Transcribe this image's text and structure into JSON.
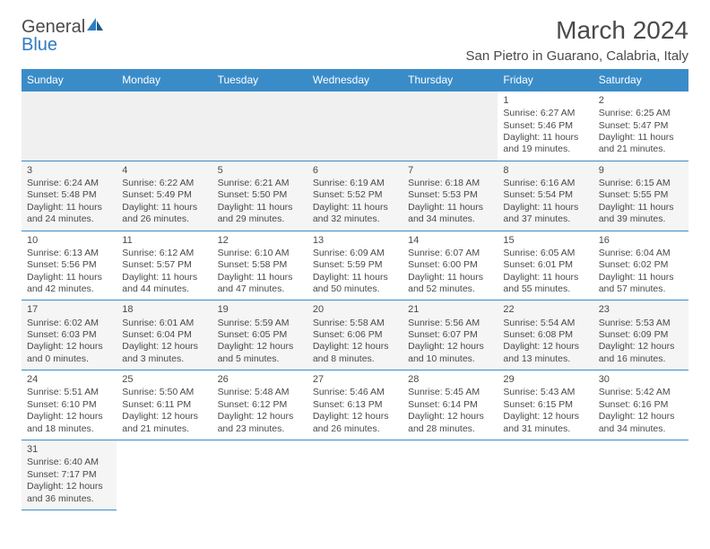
{
  "logo": {
    "text1": "General",
    "text2": "Blue"
  },
  "title": "March 2024",
  "location": "San Pietro in Guarano, Calabria, Italy",
  "weekdays": [
    "Sunday",
    "Monday",
    "Tuesday",
    "Wednesday",
    "Thursday",
    "Friday",
    "Saturday"
  ],
  "colors": {
    "header_bg": "#3a8cc8",
    "header_fg": "#ffffff",
    "border": "#3a8cc8",
    "text": "#4a4a4a",
    "alt_row": "#f5f5f5"
  },
  "weeks": [
    [
      null,
      null,
      null,
      null,
      null,
      {
        "n": "1",
        "sr": "Sunrise: 6:27 AM",
        "ss": "Sunset: 5:46 PM",
        "dl": "Daylight: 11 hours and 19 minutes."
      },
      {
        "n": "2",
        "sr": "Sunrise: 6:25 AM",
        "ss": "Sunset: 5:47 PM",
        "dl": "Daylight: 11 hours and 21 minutes."
      }
    ],
    [
      {
        "n": "3",
        "sr": "Sunrise: 6:24 AM",
        "ss": "Sunset: 5:48 PM",
        "dl": "Daylight: 11 hours and 24 minutes."
      },
      {
        "n": "4",
        "sr": "Sunrise: 6:22 AM",
        "ss": "Sunset: 5:49 PM",
        "dl": "Daylight: 11 hours and 26 minutes."
      },
      {
        "n": "5",
        "sr": "Sunrise: 6:21 AM",
        "ss": "Sunset: 5:50 PM",
        "dl": "Daylight: 11 hours and 29 minutes."
      },
      {
        "n": "6",
        "sr": "Sunrise: 6:19 AM",
        "ss": "Sunset: 5:52 PM",
        "dl": "Daylight: 11 hours and 32 minutes."
      },
      {
        "n": "7",
        "sr": "Sunrise: 6:18 AM",
        "ss": "Sunset: 5:53 PM",
        "dl": "Daylight: 11 hours and 34 minutes."
      },
      {
        "n": "8",
        "sr": "Sunrise: 6:16 AM",
        "ss": "Sunset: 5:54 PM",
        "dl": "Daylight: 11 hours and 37 minutes."
      },
      {
        "n": "9",
        "sr": "Sunrise: 6:15 AM",
        "ss": "Sunset: 5:55 PM",
        "dl": "Daylight: 11 hours and 39 minutes."
      }
    ],
    [
      {
        "n": "10",
        "sr": "Sunrise: 6:13 AM",
        "ss": "Sunset: 5:56 PM",
        "dl": "Daylight: 11 hours and 42 minutes."
      },
      {
        "n": "11",
        "sr": "Sunrise: 6:12 AM",
        "ss": "Sunset: 5:57 PM",
        "dl": "Daylight: 11 hours and 44 minutes."
      },
      {
        "n": "12",
        "sr": "Sunrise: 6:10 AM",
        "ss": "Sunset: 5:58 PM",
        "dl": "Daylight: 11 hours and 47 minutes."
      },
      {
        "n": "13",
        "sr": "Sunrise: 6:09 AM",
        "ss": "Sunset: 5:59 PM",
        "dl": "Daylight: 11 hours and 50 minutes."
      },
      {
        "n": "14",
        "sr": "Sunrise: 6:07 AM",
        "ss": "Sunset: 6:00 PM",
        "dl": "Daylight: 11 hours and 52 minutes."
      },
      {
        "n": "15",
        "sr": "Sunrise: 6:05 AM",
        "ss": "Sunset: 6:01 PM",
        "dl": "Daylight: 11 hours and 55 minutes."
      },
      {
        "n": "16",
        "sr": "Sunrise: 6:04 AM",
        "ss": "Sunset: 6:02 PM",
        "dl": "Daylight: 11 hours and 57 minutes."
      }
    ],
    [
      {
        "n": "17",
        "sr": "Sunrise: 6:02 AM",
        "ss": "Sunset: 6:03 PM",
        "dl": "Daylight: 12 hours and 0 minutes."
      },
      {
        "n": "18",
        "sr": "Sunrise: 6:01 AM",
        "ss": "Sunset: 6:04 PM",
        "dl": "Daylight: 12 hours and 3 minutes."
      },
      {
        "n": "19",
        "sr": "Sunrise: 5:59 AM",
        "ss": "Sunset: 6:05 PM",
        "dl": "Daylight: 12 hours and 5 minutes."
      },
      {
        "n": "20",
        "sr": "Sunrise: 5:58 AM",
        "ss": "Sunset: 6:06 PM",
        "dl": "Daylight: 12 hours and 8 minutes."
      },
      {
        "n": "21",
        "sr": "Sunrise: 5:56 AM",
        "ss": "Sunset: 6:07 PM",
        "dl": "Daylight: 12 hours and 10 minutes."
      },
      {
        "n": "22",
        "sr": "Sunrise: 5:54 AM",
        "ss": "Sunset: 6:08 PM",
        "dl": "Daylight: 12 hours and 13 minutes."
      },
      {
        "n": "23",
        "sr": "Sunrise: 5:53 AM",
        "ss": "Sunset: 6:09 PM",
        "dl": "Daylight: 12 hours and 16 minutes."
      }
    ],
    [
      {
        "n": "24",
        "sr": "Sunrise: 5:51 AM",
        "ss": "Sunset: 6:10 PM",
        "dl": "Daylight: 12 hours and 18 minutes."
      },
      {
        "n": "25",
        "sr": "Sunrise: 5:50 AM",
        "ss": "Sunset: 6:11 PM",
        "dl": "Daylight: 12 hours and 21 minutes."
      },
      {
        "n": "26",
        "sr": "Sunrise: 5:48 AM",
        "ss": "Sunset: 6:12 PM",
        "dl": "Daylight: 12 hours and 23 minutes."
      },
      {
        "n": "27",
        "sr": "Sunrise: 5:46 AM",
        "ss": "Sunset: 6:13 PM",
        "dl": "Daylight: 12 hours and 26 minutes."
      },
      {
        "n": "28",
        "sr": "Sunrise: 5:45 AM",
        "ss": "Sunset: 6:14 PM",
        "dl": "Daylight: 12 hours and 28 minutes."
      },
      {
        "n": "29",
        "sr": "Sunrise: 5:43 AM",
        "ss": "Sunset: 6:15 PM",
        "dl": "Daylight: 12 hours and 31 minutes."
      },
      {
        "n": "30",
        "sr": "Sunrise: 5:42 AM",
        "ss": "Sunset: 6:16 PM",
        "dl": "Daylight: 12 hours and 34 minutes."
      }
    ],
    [
      {
        "n": "31",
        "sr": "Sunrise: 6:40 AM",
        "ss": "Sunset: 7:17 PM",
        "dl": "Daylight: 12 hours and 36 minutes."
      },
      null,
      null,
      null,
      null,
      null,
      null
    ]
  ]
}
